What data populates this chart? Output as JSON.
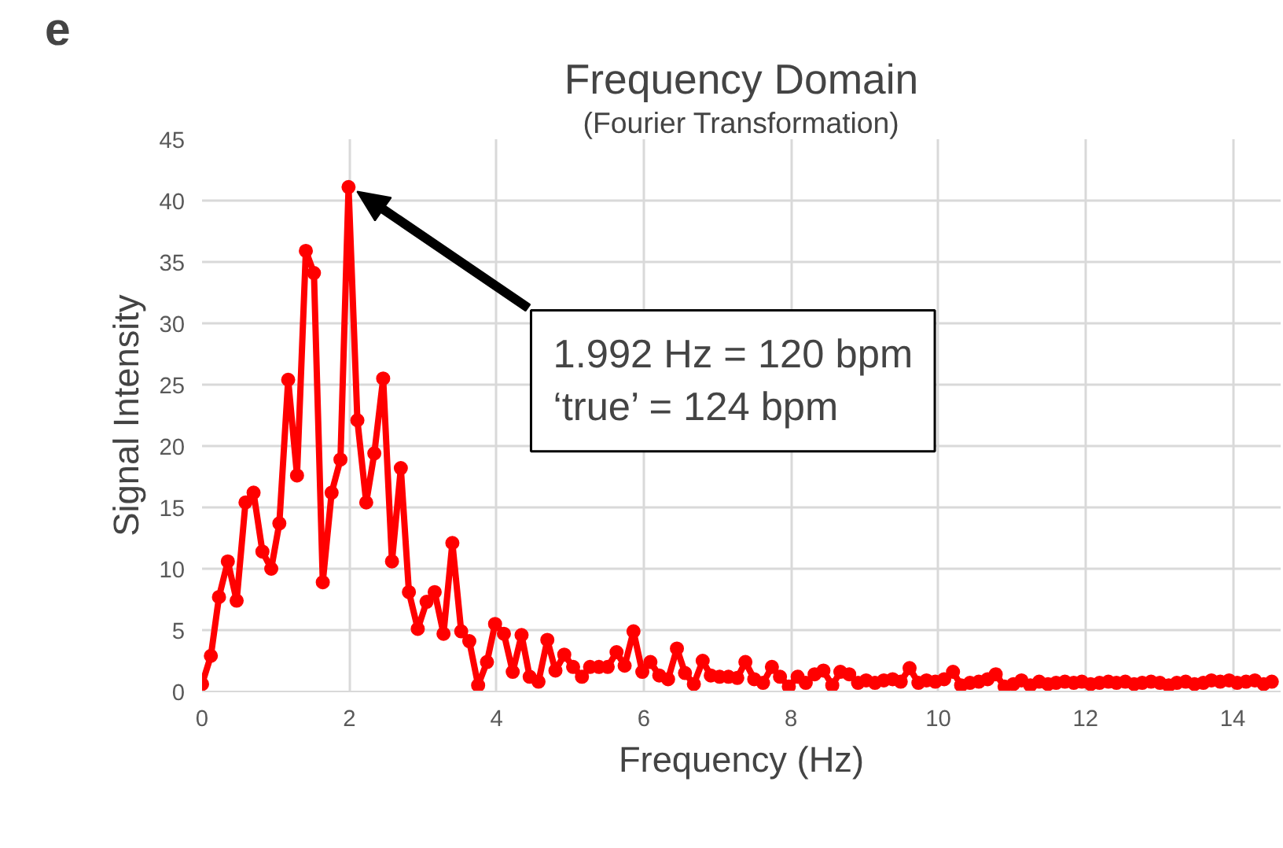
{
  "chart_data": {
    "type": "line",
    "title": "Frequency Domain",
    "subtitle": "(Fourier Transformation)",
    "xlabel": "Frequency (Hz)",
    "ylabel": "Signal Intensity",
    "annotations": [
      "e",
      "1.992 Hz = 120 bpm\n‘true’ = 124 bpm"
    ],
    "x": [
      0,
      0.12,
      0.23,
      0.35,
      0.47,
      0.59,
      0.7,
      0.82,
      0.94,
      1.05,
      1.17,
      1.29,
      1.41,
      1.52,
      1.64,
      1.76,
      1.88,
      1.99,
      2.11,
      2.23,
      2.34,
      2.46,
      2.58,
      2.7,
      2.81,
      2.93,
      3.05,
      3.16,
      3.28,
      3.4,
      3.52,
      3.63,
      3.75,
      3.87,
      3.98,
      4.1,
      4.22,
      4.34,
      4.45,
      4.57,
      4.69,
      4.8,
      4.92,
      5.04,
      5.16,
      5.27,
      5.39,
      5.51,
      5.63,
      5.74,
      5.86,
      5.98,
      6.09,
      6.21,
      6.33,
      6.45,
      6.56,
      6.68,
      6.8,
      6.91,
      7.03,
      7.15,
      7.27,
      7.38,
      7.5,
      7.62,
      7.74,
      7.85,
      7.97,
      8.09,
      8.2,
      8.32,
      8.44,
      8.56,
      8.67,
      8.79,
      8.91,
      9.02,
      9.14,
      9.26,
      9.38,
      9.49,
      9.61,
      9.73,
      9.84,
      9.96,
      10.08,
      10.2,
      10.31,
      10.43,
      10.55,
      10.67,
      10.78,
      10.9,
      11.02,
      11.13,
      11.25,
      11.37,
      11.49,
      11.6,
      11.72,
      11.84,
      11.95,
      12.07,
      12.19,
      12.31,
      12.42,
      12.54,
      12.66,
      12.77,
      12.89,
      13.01,
      13.13,
      13.24,
      13.36,
      13.48,
      13.6,
      13.71,
      13.83,
      13.95,
      14.06,
      14.18,
      14.3,
      14.42,
      14.53
    ],
    "series": [
      {
        "color": "#ff0000",
        "values": [
          0.6,
          2.9,
          7.7,
          10.6,
          7.4,
          15.4,
          16.2,
          11.4,
          10.0,
          13.7,
          25.4,
          17.6,
          35.9,
          34.1,
          8.9,
          16.2,
          18.9,
          41.1,
          22.1,
          15.4,
          19.4,
          25.5,
          10.6,
          18.2,
          8.1,
          5.1,
          7.3,
          8.1,
          4.7,
          12.1,
          4.9,
          4.1,
          0.5,
          2.4,
          5.5,
          4.7,
          1.6,
          4.6,
          1.2,
          0.8,
          4.2,
          1.7,
          3.0,
          2.0,
          1.2,
          2.0,
          2.0,
          2.0,
          3.2,
          2.1,
          4.9,
          1.6,
          2.4,
          1.3,
          1.0,
          3.5,
          1.5,
          0.6,
          2.5,
          1.3,
          1.2,
          1.2,
          1.1,
          2.4,
          1.0,
          0.7,
          2.0,
          1.2,
          0.4,
          1.2,
          0.7,
          1.4,
          1.7,
          0.5,
          1.6,
          1.4,
          0.7,
          0.9,
          0.7,
          0.9,
          1.0,
          0.8,
          1.9,
          0.7,
          0.9,
          0.8,
          1.0,
          1.6,
          0.5,
          0.7,
          0.8,
          1.0,
          1.4,
          0.4,
          0.6,
          0.9,
          0.5,
          0.8,
          0.6,
          0.7,
          0.8,
          0.7,
          0.8,
          0.6,
          0.7,
          0.8,
          0.7,
          0.8,
          0.6,
          0.7,
          0.8,
          0.7,
          0.5,
          0.7,
          0.8,
          0.6,
          0.7,
          0.9,
          0.8,
          0.9,
          0.7,
          0.8,
          0.9,
          0.6,
          0.8
        ]
      }
    ],
    "xlim": [
      0,
      14.65
    ],
    "ylim": [
      0,
      45
    ],
    "xticks": [
      0,
      2,
      4,
      6,
      8,
      10,
      12,
      14
    ],
    "yticks": [
      0,
      5,
      10,
      15,
      20,
      25,
      30,
      35,
      40,
      45
    ],
    "grid": true,
    "marker": "circle",
    "line_style": "solid"
  }
}
